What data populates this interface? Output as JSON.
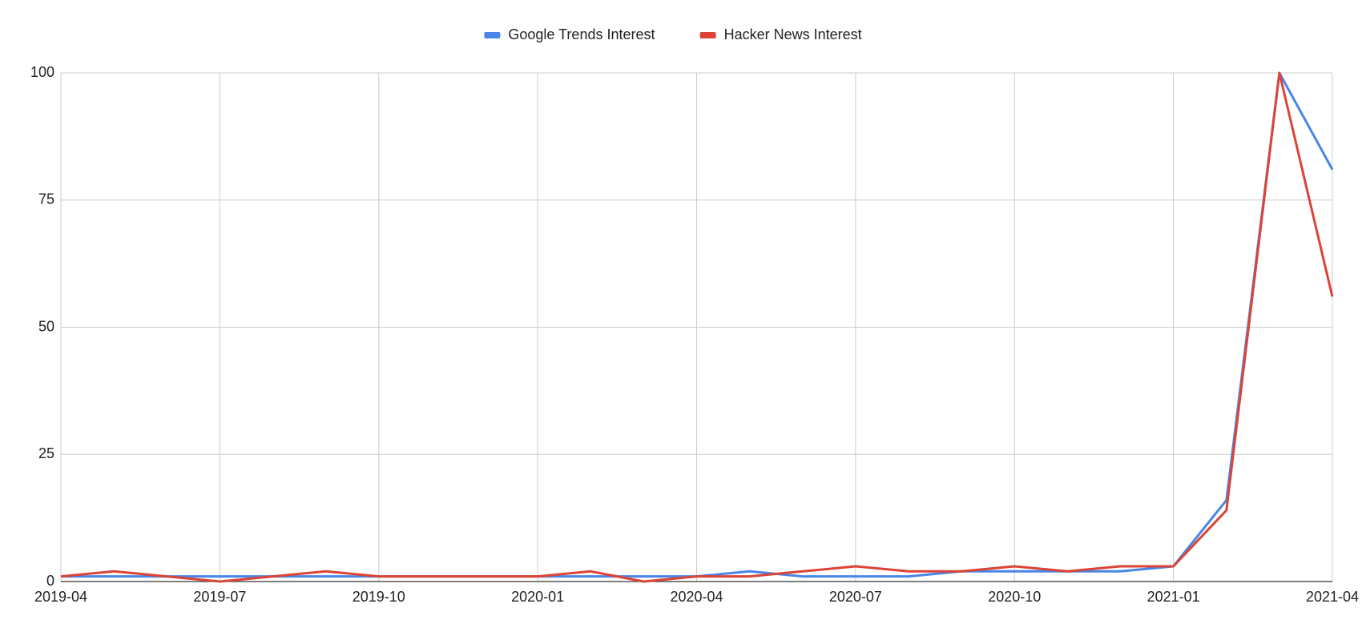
{
  "chart_data": {
    "type": "line",
    "x": [
      "2019-04",
      "2019-05",
      "2019-06",
      "2019-07",
      "2019-08",
      "2019-09",
      "2019-10",
      "2019-11",
      "2019-12",
      "2020-01",
      "2020-02",
      "2020-03",
      "2020-04",
      "2020-05",
      "2020-06",
      "2020-07",
      "2020-08",
      "2020-09",
      "2020-10",
      "2020-11",
      "2020-12",
      "2021-01",
      "2021-02",
      "2021-03",
      "2021-04"
    ],
    "xticks": [
      "2019-04",
      "2019-07",
      "2019-10",
      "2020-01",
      "2020-04",
      "2020-07",
      "2020-10",
      "2021-01",
      "2021-04"
    ],
    "series": [
      {
        "name": "Google Trends Interest",
        "color": "#4a86e8",
        "values": [
          1,
          1,
          1,
          1,
          1,
          1,
          1,
          1,
          1,
          1,
          1,
          1,
          1,
          2,
          1,
          1,
          1,
          2,
          2,
          2,
          2,
          3,
          16,
          100,
          81
        ]
      },
      {
        "name": "Hacker News Interest",
        "color": "#db4437",
        "values": [
          1,
          2,
          1,
          0,
          1,
          2,
          1,
          1,
          1,
          1,
          2,
          0,
          1,
          1,
          2,
          3,
          2,
          2,
          3,
          2,
          3,
          3,
          14,
          100,
          56
        ]
      }
    ],
    "ylim": [
      0,
      100
    ],
    "yticks": [
      0,
      25,
      50,
      75,
      100
    ],
    "grid": true,
    "legend": "top"
  }
}
